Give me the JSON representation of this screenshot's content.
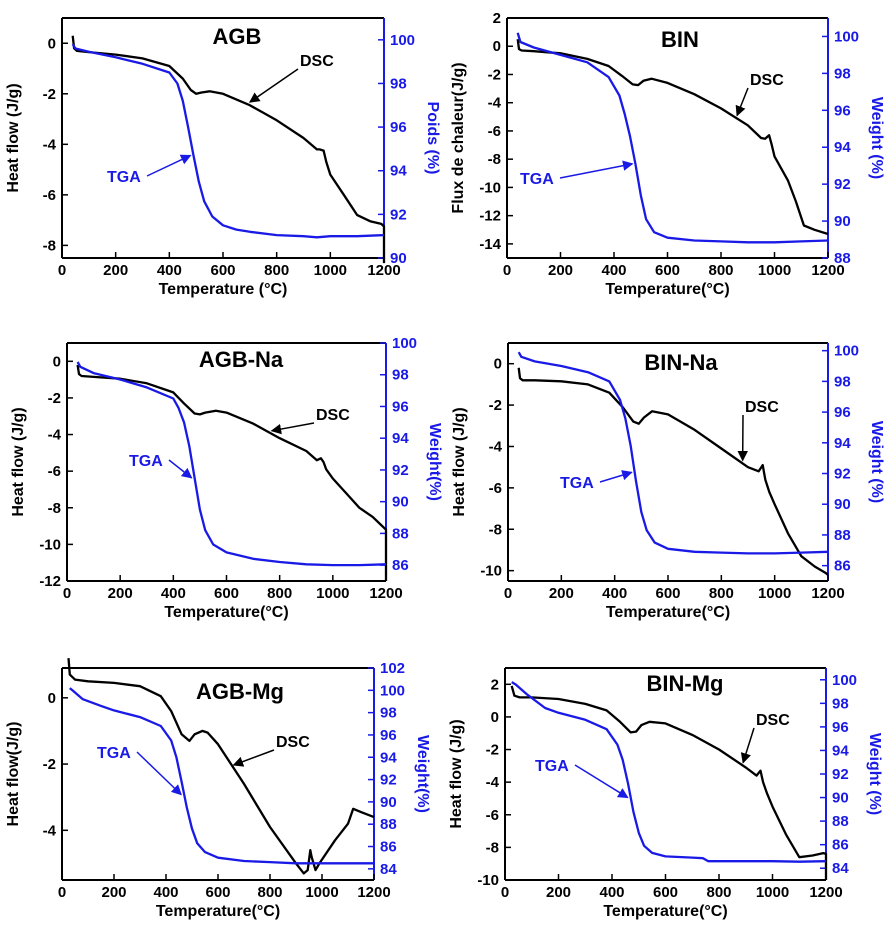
{
  "figure": {
    "colors": {
      "dsc": "#000000",
      "tga": "#1a1ae6",
      "axis": "#000000"
    },
    "panels": [
      {
        "title": "AGB",
        "xlabel": "Temperature (°C)",
        "ylabel_left": "Heat flow (J/g)",
        "ylabel_right": "Poids (%)",
        "dsc_label": "DSC",
        "tga_label": "TGA"
      },
      {
        "title": "BIN",
        "xlabel": "Temperature(°C)",
        "ylabel_left": "Flux de chaleur(J/g)",
        "ylabel_right": "Weight (%)",
        "dsc_label": "DSC",
        "tga_label": "TGA"
      },
      {
        "title": "AGB-Na",
        "xlabel": "Temperature(°C)",
        "ylabel_left": "Heat flow (J/g)",
        "ylabel_right": "Weight(%)",
        "dsc_label": "DSC",
        "tga_label": "TGA"
      },
      {
        "title": "BIN-Na",
        "xlabel": "Temperature(°C)",
        "ylabel_left": "Heat flow (J/g)",
        "ylabel_right": "Weight (%)",
        "dsc_label": "DSC",
        "tga_label": "TGA"
      },
      {
        "title": "AGB-Mg",
        "xlabel": "Temperature(°C)",
        "ylabel_left": "Heat flow(J/g)",
        "ylabel_right": "Weight(%)",
        "dsc_label": "DSC",
        "tga_label": "TGA"
      },
      {
        "title": "BIN-Mg",
        "xlabel": "Temperature(°C)",
        "ylabel_left": "Heat flow (J/g)",
        "ylabel_right": "Weight (%)",
        "dsc_label": "DSC",
        "tga_label": "TGA"
      }
    ]
  },
  "chart_data": [
    {
      "type": "line",
      "title": "AGB",
      "xlabel": "Temperature (°C)",
      "ylabel": "Heat flow (J/g)",
      "y2label": "Poids (%)",
      "xlim": [
        0,
        1200
      ],
      "ylim": [
        -8.5,
        1
      ],
      "y2lim": [
        90,
        101
      ],
      "xticks": [
        0,
        200,
        400,
        600,
        800,
        1000,
        1200
      ],
      "yticks": [
        0,
        -2,
        -4,
        -6,
        -8
      ],
      "y2ticks": [
        90,
        92,
        94,
        96,
        98,
        100
      ],
      "series": [
        {
          "name": "DSC",
          "axis": "left",
          "color": "#000000",
          "x": [
            40,
            45,
            55,
            100,
            200,
            300,
            400,
            450,
            480,
            500,
            520,
            550,
            600,
            700,
            800,
            900,
            950,
            960,
            975,
            985,
            1000,
            1050,
            1100,
            1150,
            1190,
            1200,
            1200
          ],
          "y": [
            0.3,
            -0.2,
            -0.3,
            -0.35,
            -0.45,
            -0.6,
            -0.9,
            -1.4,
            -1.85,
            -2.0,
            -1.95,
            -1.9,
            -2.0,
            -2.45,
            -3.05,
            -3.75,
            -4.2,
            -4.2,
            -4.25,
            -4.7,
            -5.2,
            -6.0,
            -6.8,
            -7.05,
            -7.15,
            -7.25,
            -8.7
          ]
        },
        {
          "name": "TGA",
          "axis": "right",
          "color": "#1a1ae6",
          "x": [
            40,
            50,
            100,
            200,
            300,
            400,
            430,
            450,
            470,
            490,
            510,
            530,
            560,
            600,
            650,
            700,
            800,
            900,
            950,
            1000,
            1100,
            1200
          ],
          "y": [
            99.8,
            99.6,
            99.45,
            99.2,
            98.9,
            98.5,
            98.0,
            97.2,
            96.0,
            94.7,
            93.5,
            92.6,
            91.9,
            91.5,
            91.3,
            91.2,
            91.05,
            91.0,
            90.95,
            91.0,
            91.0,
            91.05
          ]
        }
      ],
      "annotations": [
        "DSC",
        "TGA"
      ]
    },
    {
      "type": "line",
      "title": "BIN",
      "xlabel": "Temperature(°C)",
      "ylabel": "Flux de chaleur(J/g)",
      "y2label": "Weight (%)",
      "xlim": [
        0,
        1200
      ],
      "ylim": [
        -15,
        2
      ],
      "y2lim": [
        88,
        101
      ],
      "xticks": [
        0,
        200,
        400,
        600,
        800,
        1000,
        1200
      ],
      "yticks": [
        2,
        0,
        -2,
        -4,
        -6,
        -8,
        -10,
        -12,
        -14
      ],
      "y2ticks": [
        88,
        90,
        92,
        94,
        96,
        98,
        100
      ],
      "series": [
        {
          "name": "DSC",
          "axis": "left",
          "color": "#000000",
          "x": [
            40,
            45,
            55,
            100,
            200,
            300,
            380,
            430,
            470,
            490,
            510,
            540,
            600,
            700,
            800,
            900,
            950,
            965,
            980,
            990,
            1000,
            1050,
            1080,
            1110,
            1150,
            1200
          ],
          "y": [
            0.5,
            -0.2,
            -0.3,
            -0.35,
            -0.5,
            -0.9,
            -1.4,
            -2.1,
            -2.7,
            -2.75,
            -2.45,
            -2.3,
            -2.6,
            -3.4,
            -4.4,
            -5.6,
            -6.5,
            -6.55,
            -6.3,
            -7.0,
            -7.8,
            -9.5,
            -11.0,
            -12.7,
            -13.0,
            -13.3
          ]
        },
        {
          "name": "TGA",
          "axis": "right",
          "color": "#1a1ae6",
          "x": [
            40,
            50,
            100,
            200,
            300,
            380,
            420,
            440,
            460,
            480,
            500,
            520,
            550,
            600,
            700,
            800,
            900,
            1000,
            1100,
            1200
          ],
          "y": [
            100.2,
            99.7,
            99.4,
            99.0,
            98.6,
            97.8,
            96.8,
            95.8,
            94.6,
            93.1,
            91.4,
            90.1,
            89.4,
            89.1,
            88.95,
            88.9,
            88.85,
            88.85,
            88.9,
            88.95
          ]
        }
      ],
      "annotations": [
        "DSC",
        "TGA"
      ]
    },
    {
      "type": "line",
      "title": "AGB-Na",
      "xlabel": "Temperature(°C)",
      "ylabel": "Heat flow (J/g)",
      "y2label": "Weight(%)",
      "xlim": [
        0,
        1200
      ],
      "ylim": [
        -12,
        1
      ],
      "y2lim": [
        85,
        100
      ],
      "xticks": [
        0,
        200,
        400,
        600,
        800,
        1000,
        1200
      ],
      "yticks": [
        0,
        -2,
        -4,
        -6,
        -8,
        -10,
        -12
      ],
      "y2ticks": [
        86,
        88,
        90,
        92,
        94,
        96,
        98,
        100
      ],
      "series": [
        {
          "name": "DSC",
          "axis": "left",
          "color": "#000000",
          "x": [
            40,
            45,
            55,
            100,
            200,
            300,
            400,
            440,
            480,
            500,
            520,
            560,
            600,
            700,
            800,
            900,
            940,
            955,
            965,
            975,
            1000,
            1050,
            1100,
            1150,
            1200,
            1200
          ],
          "y": [
            -0.2,
            -0.7,
            -0.8,
            -0.85,
            -0.95,
            -1.2,
            -1.7,
            -2.3,
            -2.85,
            -2.9,
            -2.8,
            -2.7,
            -2.8,
            -3.4,
            -4.2,
            -4.9,
            -5.4,
            -5.3,
            -5.5,
            -5.9,
            -6.4,
            -7.2,
            -8.0,
            -8.5,
            -9.2,
            -12
          ]
        },
        {
          "name": "TGA",
          "axis": "right",
          "color": "#1a1ae6",
          "x": [
            40,
            50,
            100,
            200,
            300,
            400,
            420,
            440,
            460,
            480,
            500,
            520,
            550,
            600,
            700,
            800,
            900,
            1000,
            1100,
            1200
          ],
          "y": [
            98.8,
            98.5,
            98.1,
            97.7,
            97.2,
            96.5,
            95.9,
            95.0,
            93.5,
            91.5,
            89.5,
            88.2,
            87.3,
            86.8,
            86.4,
            86.2,
            86.05,
            86.0,
            86.0,
            86.05
          ]
        }
      ],
      "annotations": [
        "DSC",
        "TGA"
      ]
    },
    {
      "type": "line",
      "title": "BIN-Na",
      "xlabel": "Temperature(°C)",
      "ylabel": "Heat flow (J/g)",
      "y2label": "Weight (%)",
      "xlim": [
        0,
        1200
      ],
      "ylim": [
        -10.5,
        1
      ],
      "y2lim": [
        85,
        100.5
      ],
      "xticks": [
        0,
        200,
        400,
        600,
        800,
        1000,
        1200
      ],
      "yticks": [
        0,
        -2,
        -4,
        -6,
        -8,
        -10
      ],
      "y2ticks": [
        86,
        88,
        90,
        92,
        94,
        96,
        98,
        100
      ],
      "series": [
        {
          "name": "DSC",
          "axis": "left",
          "color": "#000000",
          "x": [
            40,
            45,
            55,
            100,
            200,
            300,
            380,
            430,
            470,
            490,
            510,
            540,
            600,
            700,
            800,
            900,
            940,
            955,
            965,
            980,
            1000,
            1050,
            1100,
            1150,
            1190,
            1200
          ],
          "y": [
            -0.2,
            -0.7,
            -0.8,
            -0.8,
            -0.85,
            -1.0,
            -1.4,
            -2.1,
            -2.8,
            -2.9,
            -2.6,
            -2.3,
            -2.45,
            -3.2,
            -4.1,
            -5.0,
            -5.2,
            -4.9,
            -5.6,
            -6.2,
            -6.8,
            -8.2,
            -9.3,
            -9.8,
            -10.1,
            -10.2
          ]
        },
        {
          "name": "TGA",
          "axis": "right",
          "color": "#1a1ae6",
          "x": [
            40,
            50,
            100,
            200,
            300,
            380,
            420,
            440,
            460,
            480,
            500,
            520,
            550,
            600,
            700,
            800,
            900,
            1000,
            1100,
            1200
          ],
          "y": [
            99.9,
            99.6,
            99.3,
            99.0,
            98.6,
            98.0,
            96.8,
            95.6,
            93.8,
            91.5,
            89.5,
            88.3,
            87.5,
            87.1,
            86.9,
            86.85,
            86.8,
            86.8,
            86.85,
            86.9
          ]
        }
      ],
      "annotations": [
        "DSC",
        "TGA"
      ]
    },
    {
      "type": "line",
      "title": "AGB-Mg",
      "xlabel": "Temperature(°C)",
      "ylabel": "Heat flow(J/g)",
      "y2label": "Weight(%)",
      "xlim": [
        0,
        1200
      ],
      "ylim": [
        -5.5,
        0.9
      ],
      "y2lim": [
        83,
        102
      ],
      "xticks": [
        0,
        200,
        400,
        600,
        800,
        1000,
        1200
      ],
      "yticks": [
        0,
        -2,
        -4
      ],
      "y2ticks": [
        84,
        86,
        88,
        90,
        92,
        94,
        96,
        98,
        100,
        102
      ],
      "series": [
        {
          "name": "DSC",
          "axis": "left",
          "color": "#000000",
          "x": [
            25,
            30,
            50,
            100,
            200,
            300,
            380,
            420,
            460,
            490,
            510,
            540,
            560,
            600,
            700,
            800,
            900,
            930,
            945,
            955,
            960,
            975,
            990,
            1050,
            1100,
            1120,
            1150,
            1200
          ],
          "y": [
            1.2,
            0.7,
            0.55,
            0.5,
            0.45,
            0.35,
            0.05,
            -0.4,
            -1.1,
            -1.3,
            -1.1,
            -1.0,
            -1.05,
            -1.4,
            -2.6,
            -3.9,
            -5.0,
            -5.3,
            -5.2,
            -4.6,
            -4.8,
            -5.2,
            -5.0,
            -4.3,
            -3.8,
            -3.35,
            -3.45,
            -3.6
          ]
        },
        {
          "name": "TGA",
          "axis": "right",
          "color": "#1a1ae6",
          "x": [
            30,
            40,
            80,
            150,
            200,
            300,
            380,
            420,
            440,
            460,
            480,
            500,
            520,
            550,
            600,
            700,
            800,
            900,
            1000,
            1100,
            1200
          ],
          "y": [
            100.2,
            100.0,
            99.2,
            98.6,
            98.2,
            97.6,
            96.8,
            95.5,
            94.0,
            91.8,
            89.5,
            87.6,
            86.3,
            85.5,
            85.0,
            84.7,
            84.6,
            84.5,
            84.5,
            84.5,
            84.5
          ]
        }
      ],
      "annotations": [
        "DSC",
        "TGA"
      ]
    },
    {
      "type": "line",
      "title": "BIN-Mg",
      "xlabel": "Temperature(°C)",
      "ylabel": "Heat flow (J/g)",
      "y2label": "Weight (%)",
      "xlim": [
        0,
        1200
      ],
      "ylim": [
        -10,
        3
      ],
      "y2lim": [
        83,
        101
      ],
      "xticks": [
        0,
        200,
        400,
        600,
        800,
        1000,
        1200
      ],
      "yticks": [
        2,
        0,
        -2,
        -4,
        -6,
        -8,
        -10
      ],
      "y2ticks": [
        84,
        86,
        88,
        90,
        92,
        94,
        96,
        98,
        100
      ],
      "series": [
        {
          "name": "DSC",
          "axis": "left",
          "color": "#000000",
          "x": [
            25,
            35,
            55,
            100,
            200,
            300,
            380,
            430,
            470,
            490,
            510,
            540,
            600,
            700,
            800,
            900,
            940,
            955,
            965,
            980,
            1000,
            1050,
            1100,
            1150,
            1190,
            1200,
            1200
          ],
          "y": [
            1.9,
            1.3,
            1.2,
            1.2,
            1.1,
            0.8,
            0.4,
            -0.3,
            -0.95,
            -0.9,
            -0.5,
            -0.3,
            -0.4,
            -1.1,
            -2.0,
            -3.1,
            -3.6,
            -3.3,
            -4.0,
            -4.7,
            -5.5,
            -7.2,
            -8.6,
            -8.5,
            -8.35,
            -8.4,
            -10
          ]
        },
        {
          "name": "TGA",
          "axis": "right",
          "color": "#1a1ae6",
          "x": [
            25,
            40,
            80,
            150,
            200,
            300,
            380,
            420,
            440,
            460,
            480,
            500,
            520,
            550,
            600,
            700,
            740,
            760,
            900,
            1000,
            1100,
            1200
          ],
          "y": [
            99.8,
            99.6,
            98.8,
            97.6,
            97.2,
            96.6,
            95.8,
            94.5,
            93.2,
            91.2,
            88.8,
            87.0,
            85.9,
            85.3,
            85.0,
            84.9,
            84.85,
            84.6,
            84.6,
            84.6,
            84.55,
            84.6
          ]
        }
      ],
      "annotations": [
        "DSC",
        "TGA"
      ]
    }
  ]
}
